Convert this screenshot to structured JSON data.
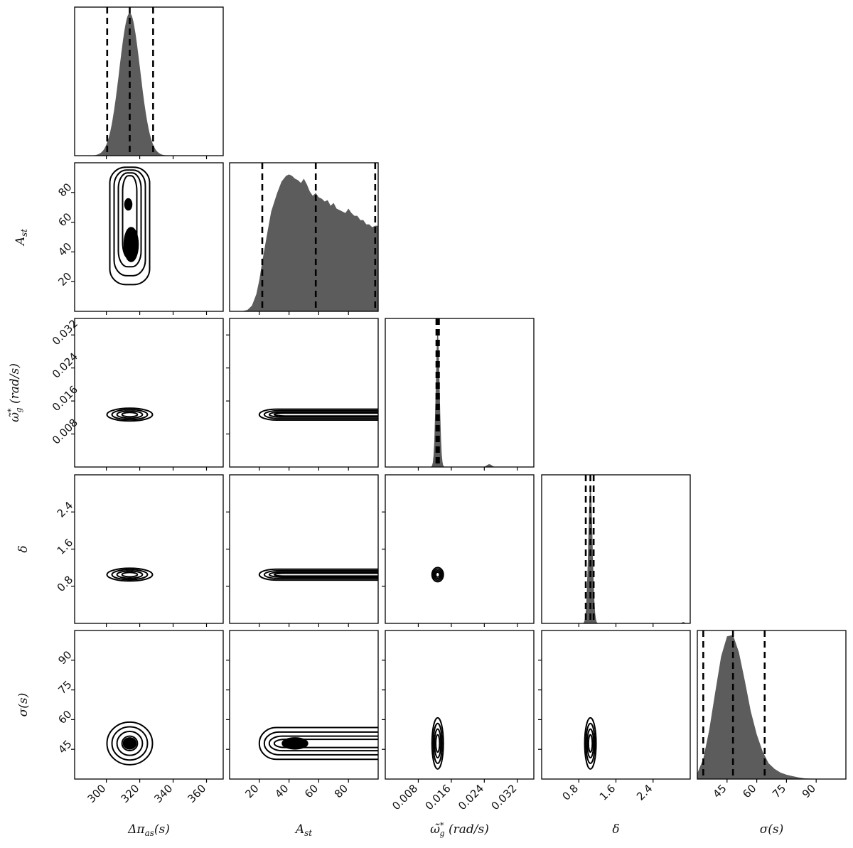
{
  "chart_data": {
    "type": "corner",
    "parameters": [
      {
        "id": "dpi",
        "label": "Δπ_as(s)",
        "label_main": "Δπ",
        "label_sub": "as",
        "label_tail": "(s)",
        "range": [
          281,
          370
        ],
        "ticks": [
          300,
          320,
          340,
          360
        ],
        "tick_labels": [
          "300",
          "320",
          "340",
          "360"
        ],
        "mean": 314,
        "sd": 6.2,
        "quantiles": [
          300.5,
          314,
          328
        ]
      },
      {
        "id": "ast",
        "label": "A_st",
        "label_main": "A",
        "label_sub": "st",
        "label_tail": "",
        "range": [
          0,
          100
        ],
        "ticks": [
          20,
          40,
          60,
          80
        ],
        "tick_labels": [
          "20",
          "40",
          "60",
          "80"
        ],
        "quantiles": [
          22,
          58,
          98
        ]
      },
      {
        "id": "omega",
        "label": "ω̃*_g (rad/s)",
        "label_main": "ω̃",
        "label_sup": "*",
        "label_sub": "g",
        "label_tail": " (rad/s)",
        "range": [
          0,
          0.036
        ],
        "ticks": [
          0.008,
          0.016,
          0.024,
          0.032
        ],
        "tick_labels": [
          "0.008",
          "0.016",
          "0.024",
          "0.032"
        ],
        "mean": 0.0127,
        "sd": 0.00045,
        "quantiles": [
          0.0124,
          0.0127,
          0.013
        ]
      },
      {
        "id": "delta",
        "label": "δ",
        "label_main": "δ",
        "label_sub": "",
        "label_tail": "",
        "range": [
          0,
          3.2
        ],
        "ticks": [
          0.8,
          1.6,
          2.4
        ],
        "tick_labels": [
          "0.8",
          "1.6",
          "2.4"
        ],
        "mean": 1.05,
        "sd": 0.045,
        "quantiles": [
          0.95,
          1.05,
          1.12
        ]
      },
      {
        "id": "sigma",
        "label": "σ(s)",
        "label_main": "σ",
        "label_sub": "",
        "label_tail": "(s)",
        "range": [
          30,
          105
        ],
        "ticks": [
          45,
          60,
          75,
          90
        ],
        "tick_labels": [
          "45",
          "60",
          "75",
          "90"
        ],
        "quantiles": [
          33,
          48,
          64
        ]
      }
    ],
    "y_ticks": {
      "ast": {
        "ticks": [
          20,
          40,
          60,
          80
        ],
        "tick_labels": [
          "20",
          "40",
          "60",
          "80"
        ]
      },
      "omega": {
        "ticks": [
          0.008,
          0.016,
          0.024,
          0.032
        ],
        "tick_labels": [
          "0.008",
          "0.016",
          "0.024",
          "0.032"
        ]
      },
      "delta": {
        "ticks": [
          0.8,
          1.6,
          2.4
        ],
        "tick_labels": [
          "0.8",
          "1.6",
          "2.4"
        ]
      },
      "sigma": {
        "ticks": [
          45,
          60,
          75,
          90
        ],
        "tick_labels": [
          "45",
          "60",
          "75",
          "90"
        ]
      }
    },
    "ast_histogram": {
      "x": [
        0,
        8,
        12,
        15,
        18,
        20,
        22,
        25,
        28,
        32,
        35,
        38,
        40,
        42,
        44,
        46,
        48,
        50,
        52,
        54,
        56,
        58,
        60,
        62,
        64,
        66,
        68,
        70,
        72,
        74,
        76,
        78,
        80,
        82,
        84,
        86,
        88,
        90,
        92,
        94,
        96,
        98,
        100
      ],
      "density": [
        0,
        0,
        0.01,
        0.04,
        0.12,
        0.22,
        0.35,
        0.53,
        0.7,
        0.83,
        0.91,
        0.95,
        0.96,
        0.95,
        0.93,
        0.92,
        0.9,
        0.93,
        0.89,
        0.84,
        0.81,
        0.83,
        0.8,
        0.79,
        0.77,
        0.78,
        0.74,
        0.76,
        0.72,
        0.71,
        0.7,
        0.69,
        0.72,
        0.69,
        0.67,
        0.67,
        0.64,
        0.64,
        0.61,
        0.61,
        0.59,
        0.6,
        0.6
      ]
    },
    "sigma_histogram": {
      "x": [
        30,
        33,
        36,
        39,
        42,
        45,
        48,
        51,
        54,
        57,
        60,
        63,
        66,
        69,
        72,
        75,
        78,
        81,
        84,
        90,
        105
      ],
      "density": [
        0.04,
        0.14,
        0.34,
        0.6,
        0.85,
        0.99,
        1.0,
        0.88,
        0.68,
        0.47,
        0.31,
        0.19,
        0.11,
        0.07,
        0.045,
        0.03,
        0.02,
        0.012,
        0.005,
        0.002,
        0
      ]
    },
    "joint": {
      "ast_vs_dpi": {
        "x_center": 314,
        "y_center": 45,
        "note": "banded contours, dense core near A_st 40-50"
      },
      "omega_vs_dpi": {
        "x_center": 314,
        "y_center": 0.0127
      },
      "omega_vs_ast": {
        "y_center": 0.0127
      },
      "delta_vs_dpi": {
        "x_center": 314,
        "y_center": 1.05
      },
      "delta_vs_ast": {
        "y_center": 1.05
      },
      "delta_vs_omega": {
        "x_center": 0.0127,
        "y_center": 1.05
      },
      "sigma_vs_dpi": {
        "x_center": 314,
        "y_center": 48
      },
      "sigma_vs_ast": {
        "y_center": 48
      },
      "sigma_vs_omega": {
        "x_center": 0.0127,
        "y_center": 48
      },
      "sigma_vs_delta": {
        "x_center": 1.05,
        "y_center": 48
      }
    }
  }
}
